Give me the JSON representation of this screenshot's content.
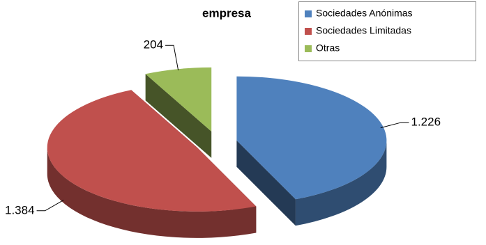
{
  "chart_data": {
    "type": "pie",
    "title": "empresa",
    "categories": [
      "Sociedades Anónimas",
      "Sociedades Limitadas",
      "Otras"
    ],
    "values": [
      1226,
      1384,
      204
    ],
    "value_labels": [
      "1.226",
      "1.384",
      "204"
    ],
    "colors": [
      "#4f81bd",
      "#c0504d",
      "#9bbb59"
    ],
    "legend": "top-right"
  }
}
